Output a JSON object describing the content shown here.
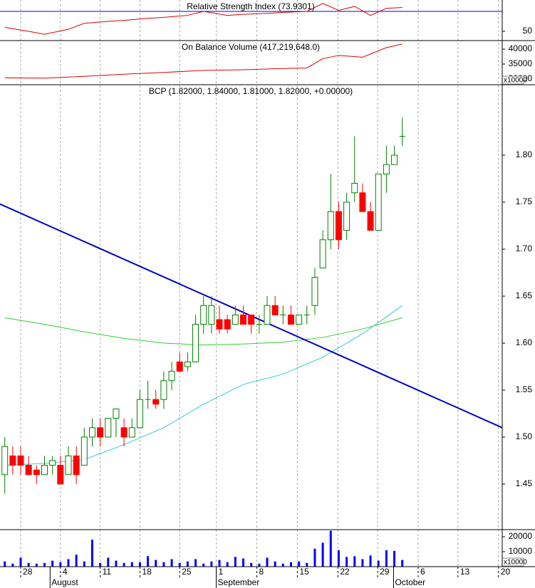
{
  "chart_data": [
    {
      "type": "line",
      "title": "Relative Strength Index (73.9301)",
      "ylim": [
        40.7,
        81.4
      ],
      "yticks": [
        50
      ],
      "reference_line": 70,
      "reference_color": "#0000cc",
      "series": [
        {
          "name": "RSI",
          "color": "#e00000",
          "x": [
            0,
            3,
            5,
            8,
            10,
            13,
            15,
            18,
            20,
            23,
            25,
            28,
            30,
            33,
            35,
            38,
            40,
            42,
            44,
            46,
            48,
            50
          ],
          "values": [
            54,
            50,
            47,
            52,
            58,
            60,
            61,
            63,
            64,
            66,
            70,
            66,
            67,
            68,
            69,
            70,
            78,
            71,
            75,
            66,
            73,
            73.9
          ]
        }
      ]
    },
    {
      "type": "line",
      "title": "On Balance Volume (417,219,648.0)",
      "ylim": [
        28095,
        42857
      ],
      "yticks": [
        40000,
        35000,
        30000
      ],
      "multiplier": "x10000",
      "series": [
        {
          "name": "OBV",
          "color": "#e00000",
          "x": [
            0,
            5,
            10,
            15,
            20,
            25,
            30,
            35,
            38,
            40,
            42,
            45,
            48,
            50
          ],
          "values": [
            30400,
            30300,
            30900,
            31600,
            32200,
            32900,
            33100,
            33500,
            33700,
            36800,
            37900,
            37300,
            40500,
            41700
          ]
        }
      ]
    },
    {
      "type": "candlestick",
      "title": "BCP (1.82000, 1.84000, 1.81000, 1.82000, +0.00000)",
      "xlim": [
        -0.6,
        62.57
      ],
      "ylim": [
        1.4015,
        1.875
      ],
      "yticks": [
        {
          "value": 1.8,
          "label": "1.80"
        },
        1.75,
        {
          "value": 1.7,
          "label": "1.70"
        },
        1.65,
        {
          "value": 1.6,
          "label": "1.60"
        },
        1.55,
        {
          "value": 1.5,
          "label": "1.50"
        },
        1.45
      ],
      "up_color": "#008000",
      "down_color": "#ff0000",
      "open": [
        1.46,
        1.48,
        1.48,
        1.47,
        1.465,
        1.46,
        1.47,
        1.47,
        1.46,
        1.48,
        1.47,
        1.5,
        1.51,
        1.5,
        1.52,
        1.51,
        1.5,
        1.51,
        1.54,
        1.54,
        1.54,
        1.56,
        1.58,
        1.575,
        1.58,
        1.62,
        1.62,
        1.625,
        1.625,
        1.62,
        1.63,
        1.63,
        1.62,
        1.62,
        1.64,
        1.63,
        1.63,
        1.62,
        1.63,
        1.64,
        1.68,
        1.71,
        1.74,
        1.72,
        1.76,
        1.76,
        1.74,
        1.72,
        1.78,
        1.79,
        1.82
      ],
      "high": [
        1.5,
        1.49,
        1.49,
        1.48,
        1.47,
        1.48,
        1.48,
        1.48,
        1.49,
        1.49,
        1.51,
        1.52,
        1.52,
        1.52,
        1.53,
        1.52,
        1.52,
        1.55,
        1.56,
        1.55,
        1.57,
        1.58,
        1.59,
        1.59,
        1.63,
        1.65,
        1.65,
        1.64,
        1.63,
        1.64,
        1.64,
        1.63,
        1.63,
        1.65,
        1.65,
        1.64,
        1.64,
        1.63,
        1.64,
        1.68,
        1.72,
        1.78,
        1.75,
        1.76,
        1.82,
        1.77,
        1.75,
        1.78,
        1.81,
        1.81,
        1.84
      ],
      "low": [
        1.44,
        1.46,
        1.46,
        1.46,
        1.45,
        1.46,
        1.46,
        1.45,
        1.46,
        1.45,
        1.47,
        1.49,
        1.49,
        1.5,
        1.5,
        1.49,
        1.5,
        1.51,
        1.53,
        1.53,
        1.53,
        1.55,
        1.57,
        1.57,
        1.58,
        1.61,
        1.61,
        1.61,
        1.61,
        1.62,
        1.62,
        1.61,
        1.61,
        1.62,
        1.63,
        1.62,
        1.62,
        1.62,
        1.62,
        1.63,
        1.68,
        1.7,
        1.7,
        1.71,
        1.75,
        1.74,
        1.72,
        1.72,
        1.76,
        1.79,
        1.81
      ],
      "close": [
        1.49,
        1.47,
        1.47,
        1.46,
        1.46,
        1.47,
        1.475,
        1.45,
        1.48,
        1.46,
        1.5,
        1.51,
        1.5,
        1.52,
        1.53,
        1.5,
        1.51,
        1.54,
        1.54,
        1.535,
        1.56,
        1.57,
        1.57,
        1.58,
        1.62,
        1.64,
        1.64,
        1.615,
        1.615,
        1.63,
        1.62,
        1.62,
        1.62,
        1.64,
        1.63,
        1.63,
        1.62,
        1.63,
        1.63,
        1.67,
        1.71,
        1.74,
        1.71,
        1.75,
        1.77,
        1.74,
        1.72,
        1.78,
        1.79,
        1.8,
        1.82
      ],
      "series": [
        {
          "name": "MA long",
          "color": "#33cc33",
          "x": [
            0,
            5,
            10,
            15,
            20,
            25,
            30,
            35,
            40,
            45,
            50
          ],
          "values": [
            1.627,
            1.62,
            1.612,
            1.605,
            1.6,
            1.598,
            1.599,
            1.601,
            1.606,
            1.615,
            1.627
          ]
        },
        {
          "name": "MA short",
          "color": "#33cccc",
          "x": [
            0,
            5,
            10,
            15,
            20,
            25,
            30,
            35,
            40,
            45,
            50
          ],
          "values": [
            1.47,
            1.472,
            1.476,
            1.492,
            1.51,
            1.535,
            1.556,
            1.567,
            1.585,
            1.61,
            1.64
          ]
        }
      ],
      "trendline": {
        "color": "#0000c8",
        "x": [
          -0.6,
          62.57
        ],
        "values": [
          1.748,
          1.51
        ]
      }
    },
    {
      "type": "bar",
      "ylim": [
        0,
        24760
      ],
      "yticks": [
        20000,
        10000
      ],
      "multiplier": "x10000",
      "color": "#0000ff",
      "values": [
        3500,
        2000,
        6000,
        2500,
        2000,
        2500,
        4000,
        3000,
        5000,
        8000,
        3500,
        18000,
        2500,
        6000,
        4000,
        2500,
        3000,
        3000,
        7000,
        4500,
        3000,
        5000,
        2500,
        3500,
        5000,
        2000,
        3500,
        4500,
        3000,
        6500,
        5500,
        2500,
        2000,
        6000,
        3500,
        2000,
        3000,
        3500,
        2500,
        12000,
        16000,
        24000,
        11000,
        6500,
        7000,
        5000,
        7500,
        4000,
        11000,
        10500,
        4500
      ],
      "xticks": [
        {
          "value": 2,
          "label": "28"
        },
        {
          "value": 7,
          "label": "4"
        },
        {
          "value": 12,
          "label": "11"
        },
        {
          "value": 17,
          "label": "18"
        },
        {
          "value": 22,
          "label": "25"
        },
        {
          "value": 26.6,
          "label": "1"
        },
        {
          "value": 31.7,
          "label": "8"
        },
        {
          "value": 36.8,
          "label": "15"
        },
        {
          "value": 41.9,
          "label": "22"
        },
        {
          "value": 46.9,
          "label": "29"
        },
        {
          "value": 52,
          "label": "6"
        },
        {
          "value": 57,
          "label": "13"
        },
        {
          "value": 62.1,
          "label": "20"
        }
      ],
      "month_ticks": [
        {
          "value": 5.7,
          "label": "August"
        },
        {
          "value": 26.6,
          "label": "September"
        },
        {
          "value": 48.9,
          "label": "October"
        }
      ]
    }
  ]
}
